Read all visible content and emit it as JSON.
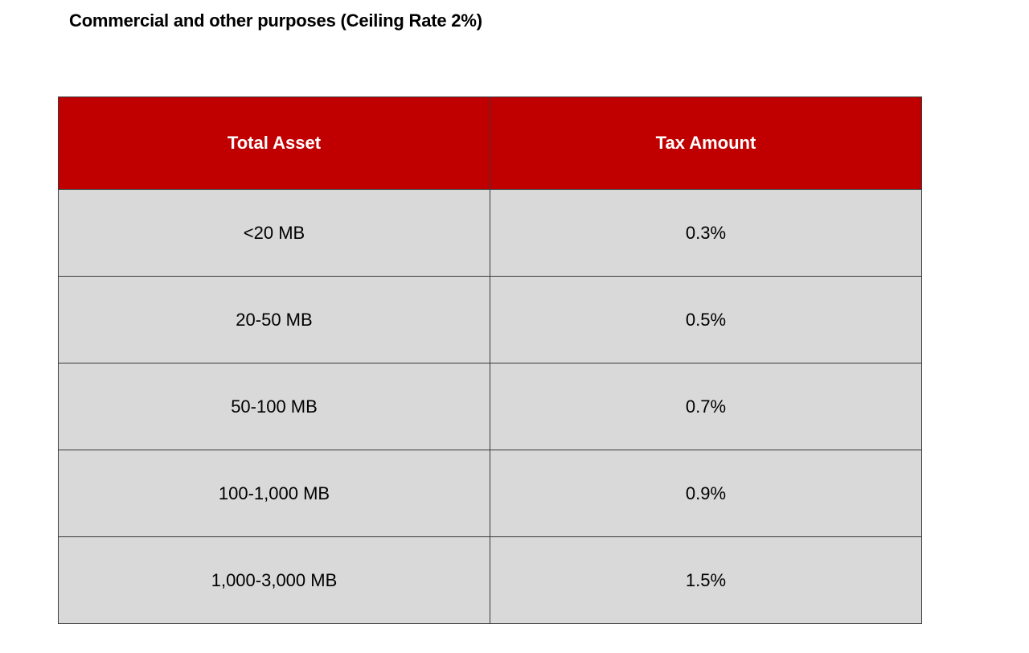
{
  "page": {
    "title": "Commercial and other purposes (Ceiling Rate 2%)"
  },
  "colors": {
    "header_background": "#c00000",
    "header_text": "#ffffff",
    "row_background": "#d9d9d9",
    "border": "#3a3a3a"
  },
  "table": {
    "headers": [
      "Total Asset",
      "Tax Amount"
    ],
    "rows": [
      [
        "<20 MB",
        "0.3%"
      ],
      [
        "20-50 MB",
        "0.5%"
      ],
      [
        "50-100 MB",
        "0.7%"
      ],
      [
        "100-1,000 MB",
        "0.9%"
      ],
      [
        "1,000-3,000 MB",
        "1.5%"
      ]
    ]
  }
}
